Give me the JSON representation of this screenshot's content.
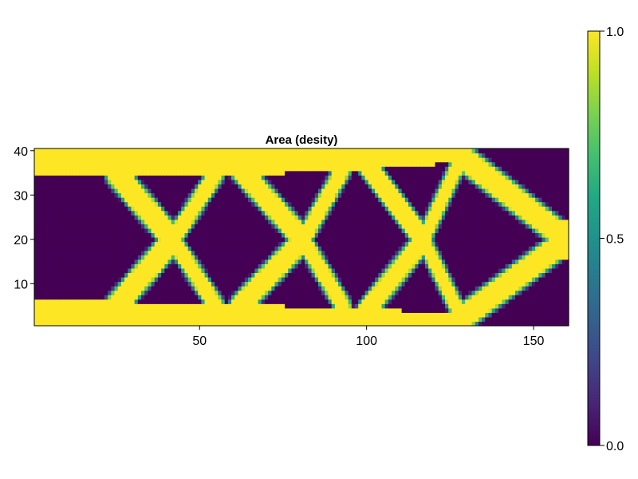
{
  "chart_data": {
    "type": "heatmap",
    "title": "Area (desity)",
    "xlabel": "",
    "ylabel": "",
    "xlim": [
      0.5,
      160.5
    ],
    "ylim": [
      0.5,
      40.5
    ],
    "x_ticks": [
      "50",
      "100",
      "150"
    ],
    "x_tick_values": [
      50,
      100,
      150
    ],
    "y_ticks": [
      "10",
      "20",
      "30",
      "40"
    ],
    "y_tick_values": [
      10,
      20,
      30,
      40
    ],
    "grid": false,
    "colormap": "viridis",
    "colorbar": {
      "ticks": [
        "0.0",
        "0.5",
        "1.0"
      ],
      "tick_values": [
        0.0,
        0.5,
        1.0
      ],
      "range": [
        0.0,
        1.0
      ]
    },
    "structure": {
      "description_of_values": "density 0 (void) to 1 (solid) on a 160 x 40 element grid",
      "top_chord": [
        [
          1,
          38
        ],
        [
          25,
          37
        ],
        [
          60,
          36
        ],
        [
          90,
          37
        ],
        [
          130,
          39
        ]
      ],
      "top_chord_thickness": [
        6,
        4,
        3,
        3,
        3
      ],
      "bottom_chord": [
        [
          1,
          3
        ],
        [
          25,
          4
        ],
        [
          60,
          4
        ],
        [
          90,
          3
        ],
        [
          130,
          2
        ]
      ],
      "bottom_chord_thickness": [
        6,
        4,
        3,
        3,
        3
      ],
      "members": [
        {
          "from": [
            25,
            35
          ],
          "to": [
            42,
            20
          ],
          "w": 3.0
        },
        {
          "from": [
            42,
            20
          ],
          "to": [
            55,
            35
          ],
          "w": 2.2
        },
        {
          "from": [
            25,
            5
          ],
          "to": [
            42,
            20
          ],
          "w": 3.0
        },
        {
          "from": [
            42,
            20
          ],
          "to": [
            55,
            5
          ],
          "w": 2.2
        },
        {
          "from": [
            62,
            36
          ],
          "to": [
            81,
            20
          ],
          "w": 2.8
        },
        {
          "from": [
            81,
            20
          ],
          "to": [
            93,
            36
          ],
          "w": 2.2
        },
        {
          "from": [
            62,
            5
          ],
          "to": [
            81,
            20
          ],
          "w": 2.8
        },
        {
          "from": [
            81,
            20
          ],
          "to": [
            93,
            5
          ],
          "w": 2.2
        },
        {
          "from": [
            100,
            37
          ],
          "to": [
            117,
            20
          ],
          "w": 2.6
        },
        {
          "from": [
            117,
            20
          ],
          "to": [
            128,
            38
          ],
          "w": 2.0
        },
        {
          "from": [
            100,
            4
          ],
          "to": [
            117,
            20
          ],
          "w": 2.6
        },
        {
          "from": [
            117,
            20
          ],
          "to": [
            128,
            3
          ],
          "w": 2.0
        },
        {
          "from": [
            128,
            39
          ],
          "to": [
            160,
            20
          ],
          "w": 3.0
        },
        {
          "from": [
            128,
            2
          ],
          "to": [
            160,
            20
          ],
          "w": 3.0
        },
        {
          "from": [
            58,
            36
          ],
          "to": [
            58,
            5
          ],
          "w": 0.0
        }
      ]
    }
  }
}
